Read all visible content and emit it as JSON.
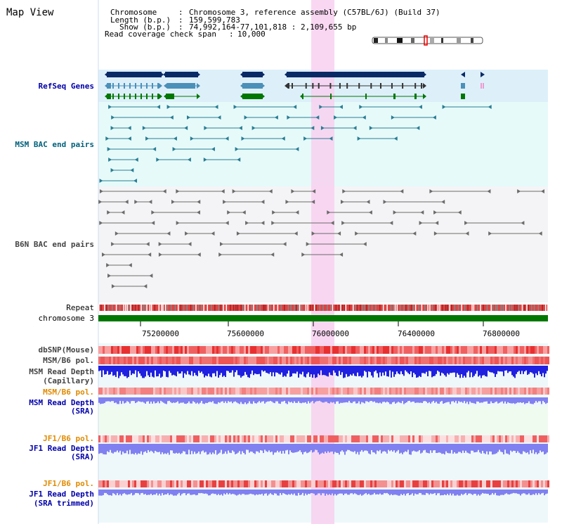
{
  "title": "Map View",
  "info": {
    "chromosome_label": "Chromosome",
    "chromosome_value": "Chromosome 3, reference assembly (C57BL/6J) (Build 37)",
    "length_label": "Length (b.p.)",
    "length_value": "159,599,783",
    "show_label": "Show (b.p.)",
    "show_value": "74,992,164-77,101,818 : 2,109,655 bp",
    "coverage_label": "Read coverage check span",
    "coverage_value": "10,000"
  },
  "tracks": {
    "refseq": "RefSeq Genes",
    "msm_bac": "MSM BAC end pairs",
    "b6n_bac": "B6N BAC end pairs",
    "repeat": "Repeat",
    "chromosome": "chromosome 3",
    "dbsnp": "dbSNP(Mouse)",
    "msm_b6_pol_1": "MSM/B6 pol.",
    "msm_depth_cap_1": "MSM Read Depth",
    "msm_depth_cap_2": "(Capillary)",
    "msm_b6_pol_2": "MSM/B6 pol.",
    "msm_depth_sra_1": "MSM Read Depth",
    "msm_depth_sra_2": "(SRA)",
    "jf1_b6_pol_1": "JF1/B6 pol.",
    "jf1_depth_sra_1": "JF1 Read Depth",
    "jf1_depth_sra_2": "(SRA)",
    "jf1_b6_pol_2": "JF1/B6 pol.",
    "jf1_depth_trim_1": "JF1 Read Depth",
    "jf1_depth_trim_2": "(SRA trimmed)"
  },
  "axis": {
    "ticks": [
      "75200000",
      "75600000",
      "76000000",
      "76400000",
      "76800000"
    ]
  },
  "colors": {
    "highlight": "#f8d0f0",
    "refseq_bg": "#ddf0fa",
    "gene_dark": "#0a2a66",
    "gene_mid": "#4a90b8",
    "gene_green": "#007700",
    "chromosome_bar": "#007700",
    "depth_blue": "#2020e0",
    "depth_light": "#8080f0"
  }
}
